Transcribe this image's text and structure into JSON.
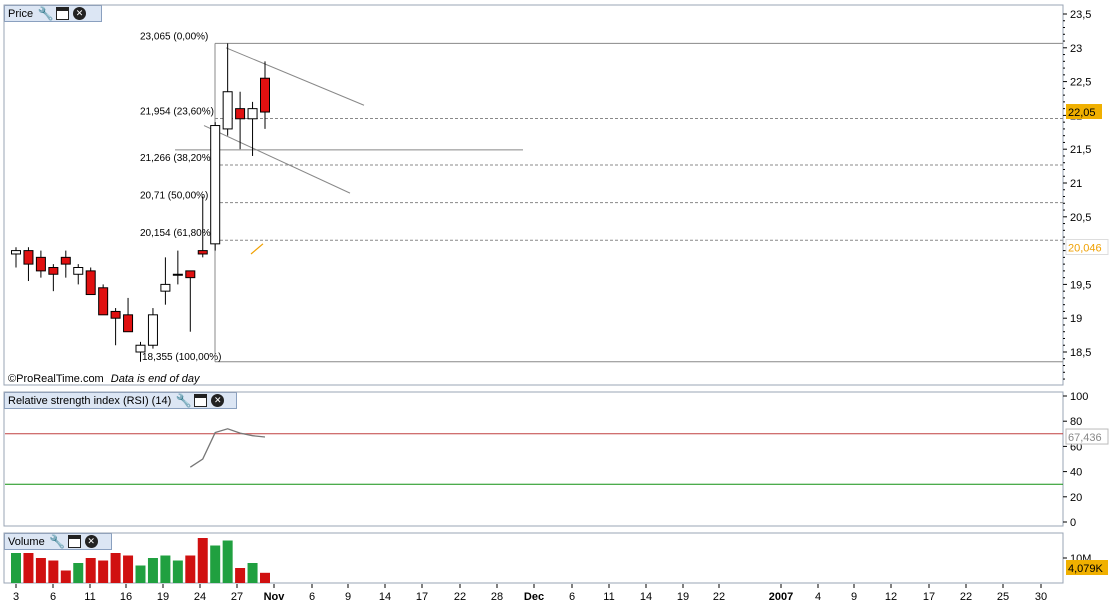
{
  "price_panel": {
    "title": "Price",
    "footer": "©ProRealTime.com",
    "footer_note": "Data is end of day",
    "y_ticks": [
      "23,5",
      "23",
      "22,5",
      "22",
      "21,5",
      "21",
      "20,5",
      "20",
      "19,5",
      "19",
      "18,5"
    ],
    "badge_last": "22,05",
    "badge_ma": "20,046",
    "fib_labels": [
      {
        "price": 23.065,
        "text": "23,065 (0,00%)"
      },
      {
        "price": 21.954,
        "text": "21,954 (23,60%)"
      },
      {
        "price": 21.266,
        "text": "21,266 (38,20%)"
      },
      {
        "price": 20.71,
        "text": "20,71 (50,00%)"
      },
      {
        "price": 20.154,
        "text": "20,154 (61,80%)"
      },
      {
        "price": 18.355,
        "text": "18,355 (100,00%)"
      }
    ]
  },
  "rsi_panel": {
    "title": "Relative strength index (RSI) (14)",
    "y_ticks": [
      "100",
      "80",
      "60",
      "40",
      "20",
      "0"
    ],
    "badge": "67,436"
  },
  "volume_panel": {
    "title": "Volume",
    "y_tick": "10M",
    "badge": "4,079K"
  },
  "x_axis": {
    "labels": [
      "3",
      "6",
      "11",
      "16",
      "19",
      "24",
      "27",
      "Nov",
      "6",
      "9",
      "14",
      "17",
      "22",
      "28",
      "Dec",
      "6",
      "11",
      "14",
      "19",
      "22",
      "2007",
      "4",
      "9",
      "12",
      "17",
      "22",
      "25",
      "30"
    ]
  },
  "colors": {
    "up": "#ffffff",
    "down": "#e01010",
    "vol_up": "#20a040",
    "vol_down": "#d01010",
    "rsi_upper": "#c04040",
    "rsi_lower": "#109010",
    "badge_last": "#f0b000",
    "badge_ma": "#f0a000"
  },
  "chart_data": {
    "type": "candlestick",
    "ylim": [
      18.2,
      23.5
    ],
    "candles": [
      {
        "open": 19.95,
        "high": 20.05,
        "low": 19.75,
        "close": 20.0
      },
      {
        "open": 20.0,
        "high": 20.05,
        "low": 19.55,
        "close": 19.8
      },
      {
        "open": 19.9,
        "high": 20.0,
        "low": 19.6,
        "close": 19.7
      },
      {
        "open": 19.75,
        "high": 19.8,
        "low": 19.4,
        "close": 19.65
      },
      {
        "open": 19.9,
        "high": 20.0,
        "low": 19.6,
        "close": 19.8
      },
      {
        "open": 19.65,
        "high": 19.8,
        "low": 19.5,
        "close": 19.75
      },
      {
        "open": 19.7,
        "high": 19.75,
        "low": 19.35,
        "close": 19.35
      },
      {
        "open": 19.45,
        "high": 19.5,
        "low": 19.1,
        "close": 19.05
      },
      {
        "open": 19.1,
        "high": 19.15,
        "low": 18.6,
        "close": 19.0
      },
      {
        "open": 19.05,
        "high": 19.3,
        "low": 18.85,
        "close": 18.8
      },
      {
        "open": 18.5,
        "high": 18.65,
        "low": 18.355,
        "close": 18.6
      },
      {
        "open": 18.6,
        "high": 19.15,
        "low": 18.55,
        "close": 19.05
      },
      {
        "open": 19.4,
        "high": 19.9,
        "low": 19.2,
        "close": 19.5
      },
      {
        "open": 19.65,
        "high": 20.0,
        "low": 19.5,
        "close": 19.65
      },
      {
        "open": 19.7,
        "high": 19.7,
        "low": 18.8,
        "close": 19.6
      },
      {
        "open": 20.0,
        "high": 20.8,
        "low": 19.9,
        "close": 19.95
      },
      {
        "open": 20.1,
        "high": 21.9,
        "low": 20.0,
        "close": 21.85
      },
      {
        "open": 21.8,
        "high": 23.065,
        "low": 21.7,
        "close": 22.35
      },
      {
        "open": 22.1,
        "high": 22.35,
        "low": 21.5,
        "close": 21.95
      },
      {
        "open": 21.95,
        "high": 22.2,
        "low": 21.4,
        "close": 22.1
      },
      {
        "open": 22.55,
        "high": 22.8,
        "low": 21.8,
        "close": 22.05
      }
    ],
    "rsi": [
      43.5,
      50,
      71,
      74,
      70.5,
      68.5,
      67.436
    ],
    "rsi_levels": [
      70,
      30
    ],
    "volume_millions": [
      12,
      12,
      10,
      9,
      5,
      8,
      10,
      9,
      12,
      11,
      7,
      10,
      11,
      9,
      11,
      18,
      15,
      17,
      6,
      8,
      4.079
    ],
    "volume_ylim": [
      0,
      20
    ]
  }
}
